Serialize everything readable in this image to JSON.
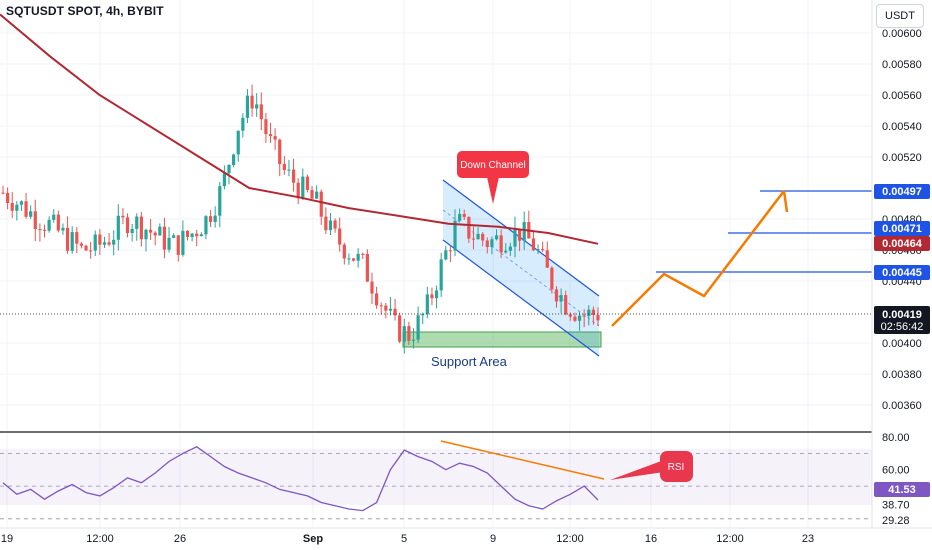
{
  "header": {
    "title": "SQTUSDT SPOT, 4h, BYBIT",
    "currency": "USDT"
  },
  "chart_data": [
    {
      "type": "candlestick",
      "title": "SQTUSDT SPOT, 4h, BYBIT",
      "ylim": [
        0.00348,
        0.00612
      ],
      "y_ticks": [
        "0.00600",
        "0.00580",
        "0.00560",
        "0.00540",
        "0.00520",
        "0.00480",
        "0.00460",
        "0.00440",
        "0.00400",
        "0.00380",
        "0.00360"
      ],
      "x_ticks": [
        "19",
        "12:00",
        "26",
        "Sep",
        "5",
        "9",
        "12:00",
        "16",
        "12:00",
        "23"
      ],
      "series": [
        {
          "name": "Moving average",
          "color": "#b22833",
          "values_approx": [
            0.00612,
            0.00585,
            0.0056,
            0.0054,
            0.0052,
            0.005,
            0.00494,
            0.00487,
            0.00482,
            0.00477,
            0.00475,
            0.00471,
            0.00464
          ]
        }
      ],
      "candles_approx": [
        0.00497,
        0.0049,
        0.00482,
        0.00476,
        0.00468,
        0.0046,
        0.00462,
        0.0047,
        0.0048,
        0.00475,
        0.00468,
        0.00463,
        0.0047,
        0.0048,
        0.005,
        0.0054,
        0.0056,
        0.0053,
        0.0051,
        0.005,
        0.0049,
        0.0047,
        0.0046,
        0.0045,
        0.0043,
        0.0041,
        0.00405,
        0.0042,
        0.0045,
        0.00478,
        0.0047,
        0.00465,
        0.00468,
        0.00472,
        0.00462,
        0.0044,
        0.00425,
        0.00418,
        0.00419
      ],
      "annotations": {
        "down_channel": "Down Channel",
        "support_area": "Support Area",
        "rsi": "RSI"
      },
      "horizontal_levels": [
        {
          "label": "0.00497",
          "color": "#1e53e5"
        },
        {
          "label": "0.00471",
          "color": "#1e53e5"
        },
        {
          "label": "0.00445",
          "color": "#1e53e5"
        }
      ],
      "price_tags": [
        {
          "label": "0.00464",
          "color": "#b22833"
        },
        {
          "label": "0.00419",
          "sub": "02:56:42",
          "color": "#131722"
        }
      ],
      "projection_color": "#f57c00"
    },
    {
      "type": "line",
      "title": "RSI",
      "ylim": [
        29.28,
        80.0
      ],
      "y_ticks": [
        "80.00",
        "60.00",
        "38.70",
        "29.28"
      ],
      "current_value": "41.53",
      "levels": [
        70,
        50,
        30
      ],
      "series": [
        {
          "name": "RSI",
          "color": "#7e57c2",
          "values": [
            52,
            45,
            48,
            42,
            47,
            51,
            46,
            44,
            49,
            55,
            52,
            58,
            65,
            70,
            74,
            68,
            62,
            58,
            55,
            52,
            48,
            46,
            44,
            40,
            38,
            36,
            35,
            40,
            60,
            72,
            68,
            65,
            60,
            64,
            62,
            58,
            50,
            42,
            38,
            36,
            41,
            45,
            50,
            41.5
          ]
        }
      ],
      "divergence_color": "#f57c00"
    }
  ]
}
